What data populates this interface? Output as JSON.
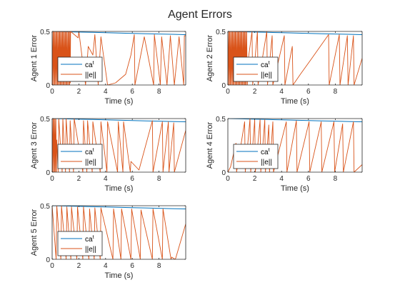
{
  "figure": {
    "title": "Agent Errors"
  },
  "colors": {
    "threshold": "#0072BD",
    "error": "#D95319",
    "axis": "#262626",
    "background": "#ffffff"
  },
  "chart_data": [
    {
      "type": "line",
      "title": "",
      "xlabel": "Time (s)",
      "ylabel": "Agent 1 Error",
      "xlim": [
        0,
        10
      ],
      "ylim": [
        0,
        0.5
      ],
      "xticks": [
        0,
        2,
        4,
        6,
        8
      ],
      "yticks": [
        0,
        0.5
      ],
      "legend": {
        "placement": "left-middle",
        "entries": [
          {
            "label": "ca",
            "superscript": "t"
          },
          {
            "label": "||e||",
            "superscript": ""
          }
        ]
      },
      "series": [
        {
          "name": "ca^t",
          "x": [
            0,
            1,
            2,
            3,
            4,
            5,
            6,
            7,
            8,
            9,
            10
          ],
          "y": [
            0.5,
            0.497,
            0.494,
            0.491,
            0.488,
            0.485,
            0.482,
            0.479,
            0.476,
            0.473,
            0.47
          ]
        },
        {
          "name": "||e||",
          "x": [
            0,
            0.05,
            0.07,
            0.12,
            0.14,
            0.19,
            0.21,
            0.26,
            0.28,
            0.33,
            0.35,
            0.4,
            0.42,
            0.47,
            0.49,
            0.54,
            0.56,
            0.61,
            0.63,
            0.68,
            0.7,
            0.75,
            0.77,
            0.82,
            0.84,
            0.89,
            0.91,
            0.96,
            0.98,
            1.03,
            1.05,
            1.1,
            1.12,
            1.17,
            1.19,
            1.24,
            1.26,
            1.31,
            1.33,
            1.36,
            1.38,
            1.95,
            2.0,
            2.5,
            2.7,
            3.05,
            3.2,
            3.45,
            3.65,
            4.15,
            4.75,
            5.5,
            5.9,
            6.15,
            6.2,
            6.9,
            7.6,
            7.65,
            8.1,
            8.2,
            8.6,
            8.85,
            9.15,
            9.5,
            9.85,
            9.9,
            10.0
          ],
          "y": [
            0.5,
            0,
            0.5,
            0,
            0.5,
            0,
            0.5,
            0,
            0.5,
            0,
            0.5,
            0,
            0.5,
            0,
            0.5,
            0,
            0.5,
            0,
            0.5,
            0,
            0.5,
            0,
            0.5,
            0,
            0.5,
            0,
            0.5,
            0,
            0.5,
            0,
            0.5,
            0,
            0.5,
            0,
            0.5,
            0,
            0.5,
            0,
            0.5,
            0.02,
            0.5,
            0.44,
            0.5,
            0,
            0.36,
            0.28,
            0.47,
            0,
            0.45,
            0,
            0.02,
            0.1,
            0.28,
            0.47,
            0,
            0.45,
            0,
            0.47,
            0,
            0.45,
            0,
            0.46,
            0,
            0.45,
            0,
            0.46,
            0.46
          ]
        }
      ]
    },
    {
      "type": "line",
      "title": "",
      "xlabel": "Time (s)",
      "ylabel": "Agent 2 Error",
      "xlim": [
        0,
        10
      ],
      "ylim": [
        0,
        0.5
      ],
      "xticks": [
        0,
        2,
        4,
        6,
        8
      ],
      "yticks": [
        0,
        0.5
      ],
      "legend": {
        "placement": "left-middle",
        "entries": [
          {
            "label": "ca",
            "superscript": "t"
          },
          {
            "label": "||e||",
            "superscript": ""
          }
        ]
      },
      "series": [
        {
          "name": "ca^t",
          "x": [
            0,
            1,
            2,
            3,
            4,
            5,
            6,
            7,
            8,
            9,
            10
          ],
          "y": [
            0.5,
            0.497,
            0.494,
            0.491,
            0.488,
            0.485,
            0.482,
            0.479,
            0.476,
            0.473,
            0.47
          ]
        },
        {
          "name": "||e||",
          "x": [
            0,
            0.05,
            0.07,
            0.12,
            0.14,
            0.19,
            0.21,
            0.26,
            0.28,
            0.33,
            0.35,
            0.4,
            0.42,
            0.47,
            0.49,
            0.54,
            0.56,
            0.61,
            0.63,
            0.68,
            0.7,
            0.75,
            0.77,
            0.82,
            0.84,
            0.89,
            0.91,
            0.96,
            0.98,
            1.03,
            1.05,
            1.1,
            1.12,
            1.17,
            1.19,
            1.24,
            1.26,
            1.31,
            1.33,
            1.38,
            1.4,
            1.45,
            1.5,
            1.8,
            1.85,
            2.2,
            2.25,
            2.9,
            2.95,
            3.3,
            3.35,
            4.2,
            4.25,
            4.8,
            4.85,
            5.4,
            6.2,
            7.5,
            7.55,
            8.3,
            8.35,
            8.9,
            8.95,
            9.35,
            9.4,
            10.0
          ],
          "y": [
            0.5,
            0,
            0.5,
            0,
            0.5,
            0,
            0.5,
            0,
            0.5,
            0,
            0.5,
            0,
            0.5,
            0,
            0.5,
            0,
            0.5,
            0,
            0.5,
            0,
            0.5,
            0,
            0.5,
            0,
            0.5,
            0,
            0.5,
            0,
            0.5,
            0,
            0.5,
            0,
            0.5,
            0,
            0.5,
            0,
            0.5,
            0,
            0.5,
            0,
            0.5,
            0,
            0.22,
            0.5,
            0,
            0.5,
            0,
            0.5,
            0,
            0.46,
            0,
            0.46,
            0,
            0.36,
            0,
            0.1,
            0.24,
            0.47,
            0,
            0.47,
            0,
            0.46,
            0,
            0.46,
            0,
            0.25
          ]
        }
      ]
    },
    {
      "type": "line",
      "title": "",
      "xlabel": "Time (s)",
      "ylabel": "Agent 3 Error",
      "xlim": [
        0,
        10
      ],
      "ylim": [
        0,
        0.5
      ],
      "xticks": [
        0,
        2,
        4,
        6,
        8
      ],
      "yticks": [
        0,
        0.5
      ],
      "legend": {
        "placement": "left-middle",
        "entries": [
          {
            "label": "ca",
            "superscript": "t"
          },
          {
            "label": "||e||",
            "superscript": ""
          }
        ]
      },
      "series": [
        {
          "name": "ca^t",
          "x": [
            0,
            1,
            2,
            3,
            4,
            5,
            6,
            7,
            8,
            9,
            10
          ],
          "y": [
            0.5,
            0.497,
            0.494,
            0.491,
            0.488,
            0.485,
            0.482,
            0.479,
            0.476,
            0.473,
            0.47
          ]
        },
        {
          "name": "||e||",
          "x": [
            0,
            0.05,
            0.07,
            0.12,
            0.14,
            0.19,
            0.21,
            0.26,
            0.28,
            0.32,
            0.34,
            0.45,
            0.5,
            0.75,
            0.8,
            1.0,
            1.05,
            1.3,
            1.35,
            1.6,
            1.65,
            2.3,
            2.35,
            2.6,
            2.65,
            3.0,
            3.05,
            3.6,
            3.65,
            4.1,
            4.15,
            4.9,
            4.95,
            5.3,
            5.35,
            5.85,
            5.9,
            6.5,
            7.5,
            7.55,
            8.25,
            8.3,
            8.7,
            8.75,
            9.1,
            9.15,
            10.0
          ],
          "y": [
            0.5,
            0,
            0.5,
            0,
            0.5,
            0,
            0.5,
            0,
            0.5,
            0,
            0.3,
            0,
            0.5,
            0,
            0.5,
            0,
            0.5,
            0,
            0.48,
            0,
            0.5,
            0,
            0.48,
            0,
            0.48,
            0,
            0.47,
            0,
            0.47,
            0,
            0.47,
            0,
            0.47,
            0,
            0.47,
            0,
            0.1,
            0.02,
            0.48,
            0,
            0.47,
            0,
            0.47,
            0,
            0.46,
            0,
            0.39
          ]
        }
      ]
    },
    {
      "type": "line",
      "title": "",
      "xlabel": "Time (s)",
      "ylabel": "Agent 4 Error",
      "xlim": [
        0,
        10
      ],
      "ylim": [
        0,
        0.5
      ],
      "xticks": [
        0,
        2,
        4,
        6,
        8
      ],
      "yticks": [
        0,
        0.5
      ],
      "legend": {
        "placement": "left-middle",
        "entries": [
          {
            "label": "ca",
            "superscript": "t"
          },
          {
            "label": "||e||",
            "superscript": ""
          }
        ]
      },
      "series": [
        {
          "name": "ca^t",
          "x": [
            0,
            1,
            2,
            3,
            4,
            5,
            6,
            7,
            8,
            9,
            10
          ],
          "y": [
            0.5,
            0.497,
            0.494,
            0.491,
            0.488,
            0.485,
            0.482,
            0.479,
            0.476,
            0.473,
            0.47
          ]
        },
        {
          "name": "||e||",
          "x": [
            0,
            0.2,
            0.6,
            0.65,
            1.25,
            1.3,
            1.65,
            1.7,
            2.0,
            2.05,
            2.4,
            2.45,
            2.75,
            2.8,
            3.05,
            3.1,
            3.35,
            3.4,
            4.35,
            4.4,
            5.1,
            5.15,
            6.05,
            6.1,
            6.95,
            7.0,
            7.9,
            7.95,
            8.55,
            8.6,
            9.35,
            9.4,
            10.0
          ],
          "y": [
            0,
            0.05,
            0.27,
            0,
            0.47,
            0,
            0.5,
            0,
            0.49,
            0,
            0.49,
            0,
            0.49,
            0,
            0.44,
            0,
            0.47,
            0,
            0.47,
            0,
            0.48,
            0,
            0.47,
            0,
            0.47,
            0,
            0.47,
            0,
            0.45,
            0,
            0.47,
            0,
            0.07
          ]
        }
      ]
    },
    {
      "type": "line",
      "title": "",
      "xlabel": "Time (s)",
      "ylabel": "Agent 5 Error",
      "xlim": [
        0,
        10
      ],
      "ylim": [
        0,
        0.5
      ],
      "xticks": [
        0,
        2,
        4,
        6,
        8
      ],
      "yticks": [
        0,
        0.5
      ],
      "legend": {
        "placement": "left-middle",
        "entries": [
          {
            "label": "ca",
            "superscript": "t"
          },
          {
            "label": "||e||",
            "superscript": ""
          }
        ]
      },
      "series": [
        {
          "name": "ca^t",
          "x": [
            0,
            1,
            2,
            3,
            4,
            5,
            6,
            7,
            8,
            9,
            10
          ],
          "y": [
            0.5,
            0.497,
            0.494,
            0.491,
            0.488,
            0.485,
            0.482,
            0.479,
            0.476,
            0.473,
            0.47
          ]
        },
        {
          "name": "||e||",
          "x": [
            0,
            0.3,
            0.35,
            0.65,
            0.7,
            1.05,
            1.1,
            1.4,
            1.45,
            1.85,
            1.9,
            2.3,
            2.35,
            2.75,
            2.8,
            3.15,
            3.2,
            3.6,
            3.65,
            4.55,
            4.6,
            5.15,
            5.2,
            5.9,
            5.95,
            6.6,
            6.65,
            7.5,
            7.55,
            8.25,
            8.3,
            8.9,
            8.95,
            9.2,
            9.25,
            10.0
          ],
          "y": [
            0.5,
            0,
            0.5,
            0,
            0.5,
            0,
            0.49,
            0,
            0.49,
            0,
            0.49,
            0,
            0.49,
            0,
            0.47,
            0,
            0.48,
            0,
            0.48,
            0,
            0.47,
            0,
            0.47,
            0,
            0.47,
            0,
            0.46,
            0,
            0.47,
            0,
            0.47,
            0,
            0.02,
            0,
            0.01,
            0.33
          ]
        }
      ]
    }
  ]
}
